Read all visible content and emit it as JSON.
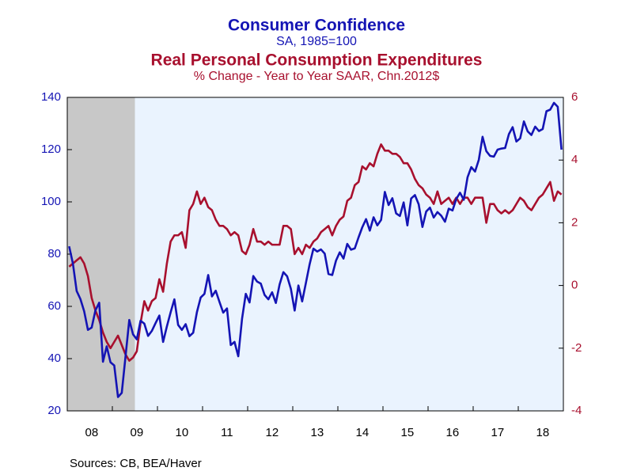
{
  "chart_data": {
    "type": "line",
    "source": "Sources:  CB, BEA/Haver",
    "series": [
      {
        "name": "Consumer Confidence",
        "subtitle": "SA, 1985=100",
        "color": "#1414b4",
        "axis": "y",
        "values": [
          83,
          76.4,
          65.9,
          62.8,
          58.1,
          51.0,
          51.9,
          58.5,
          61.4,
          38.8,
          44.7,
          38.6,
          37.4,
          25.3,
          26.9,
          40.8,
          54.8,
          49.3,
          47.4,
          54.5,
          53.4,
          48.7,
          50.6,
          53.6,
          56.5,
          46.4,
          52.3,
          57.7,
          62.7,
          52.9,
          51.0,
          53.2,
          48.6,
          49.9,
          57.8,
          63.4,
          64.8,
          72.0,
          63.8,
          66.0,
          61.7,
          57.6,
          59.2,
          45.2,
          46.4,
          40.9,
          55.2,
          64.8,
          61.5,
          71.6,
          69.5,
          68.7,
          64.4,
          62.7,
          65.4,
          61.3,
          68.4,
          73.1,
          71.5,
          66.7,
          58.4,
          68.0,
          61.9,
          69.0,
          76.2,
          82.1,
          81.0,
          81.8,
          80.2,
          72.4,
          72.0,
          77.5,
          80.7,
          78.3,
          83.9,
          81.7,
          82.2,
          86.4,
          90.3,
          93.4,
          89.0,
          94.1,
          91.0,
          93.1,
          103.8,
          98.8,
          101.4,
          95.6,
          94.6,
          99.8,
          91.0,
          101.3,
          102.6,
          99.1,
          90.4,
          96.3,
          97.8,
          94.0,
          96.1,
          94.7,
          92.4,
          97.4,
          96.7,
          101.1,
          103.5,
          100.8,
          109.4,
          113.3,
          111.6,
          116.1,
          124.9,
          119.4,
          117.6,
          117.3,
          120.0,
          120.4,
          120.6,
          125.9,
          128.6,
          123.1,
          124.3,
          130.8,
          127.0,
          125.6,
          128.8,
          127.1,
          127.9,
          134.7,
          135.3,
          137.9,
          136.4,
          120
        ]
      },
      {
        "name": "Real Personal Consumption Expenditures",
        "subtitle": "% Change - Year to Year    SAAR, Chn.2012$",
        "color": "#a8102e",
        "axis": "y2",
        "values": [
          0.6,
          0.7,
          0.8,
          0.9,
          0.7,
          0.3,
          -0.4,
          -0.8,
          -1.1,
          -1.5,
          -1.8,
          -2.0,
          -1.8,
          -1.6,
          -1.9,
          -2.2,
          -2.4,
          -2.3,
          -2.1,
          -1.2,
          -0.5,
          -0.8,
          -0.5,
          -0.4,
          0.2,
          -0.2,
          0.7,
          1.4,
          1.6,
          1.6,
          1.7,
          1.2,
          2.4,
          2.6,
          3.0,
          2.6,
          2.8,
          2.5,
          2.4,
          2.1,
          1.9,
          1.9,
          1.8,
          1.6,
          1.7,
          1.6,
          1.1,
          1.0,
          1.3,
          1.8,
          1.4,
          1.4,
          1.3,
          1.4,
          1.3,
          1.3,
          1.3,
          1.9,
          1.9,
          1.8,
          1.0,
          1.2,
          1.0,
          1.3,
          1.2,
          1.4,
          1.5,
          1.7,
          1.8,
          1.9,
          1.6,
          1.9,
          2.1,
          2.2,
          2.7,
          2.8,
          3.2,
          3.3,
          3.8,
          3.7,
          3.9,
          3.8,
          4.2,
          4.5,
          4.3,
          4.3,
          4.2,
          4.2,
          4.1,
          3.9,
          3.9,
          3.7,
          3.4,
          3.2,
          3.1,
          2.9,
          2.8,
          2.6,
          3.0,
          2.6,
          2.7,
          2.8,
          2.6,
          2.8,
          2.6,
          2.8,
          2.8,
          2.6,
          2.8,
          2.8,
          2.8,
          2.0,
          2.6,
          2.6,
          2.4,
          2.3,
          2.4,
          2.3,
          2.4,
          2.6,
          2.8,
          2.7,
          2.5,
          2.4,
          2.6,
          2.8,
          2.9,
          3.1,
          3.3,
          2.7,
          3.0,
          2.9
        ]
      }
    ],
    "categories": [
      null,
      null,
      null,
      null,
      null,
      null,
      "08",
      null,
      null,
      null,
      null,
      null,
      null,
      null,
      null,
      null,
      null,
      null,
      "09",
      null,
      null,
      null,
      null,
      null,
      null,
      null,
      null,
      null,
      null,
      null,
      "10",
      null,
      null,
      null,
      null,
      null,
      null,
      null,
      null,
      null,
      null,
      null,
      "11",
      null,
      null,
      null,
      null,
      null,
      null,
      null,
      null,
      null,
      null,
      null,
      "12",
      null,
      null,
      null,
      null,
      null,
      null,
      null,
      null,
      null,
      null,
      null,
      "13",
      null,
      null,
      null,
      null,
      null,
      null,
      null,
      null,
      null,
      null,
      null,
      "14",
      null,
      null,
      null,
      null,
      null,
      null,
      null,
      null,
      null,
      null,
      null,
      "15",
      null,
      null,
      null,
      null,
      null,
      null,
      null,
      null,
      null,
      null,
      null,
      "16",
      null,
      null,
      null,
      null,
      null,
      null,
      null,
      null,
      null,
      null,
      null,
      "17",
      null,
      null,
      null,
      null,
      null,
      null,
      null,
      null,
      null,
      null,
      null,
      "18",
      null,
      null,
      null,
      null,
      null
    ],
    "shaded": [
      0,
      17
    ],
    "ylim": [
      20,
      140
    ],
    "yticks": [
      20,
      40,
      60,
      80,
      100,
      120,
      140
    ],
    "y2lim": [
      -4,
      6
    ],
    "y2ticks": [
      -4,
      -2,
      0,
      2,
      4,
      6
    ]
  }
}
